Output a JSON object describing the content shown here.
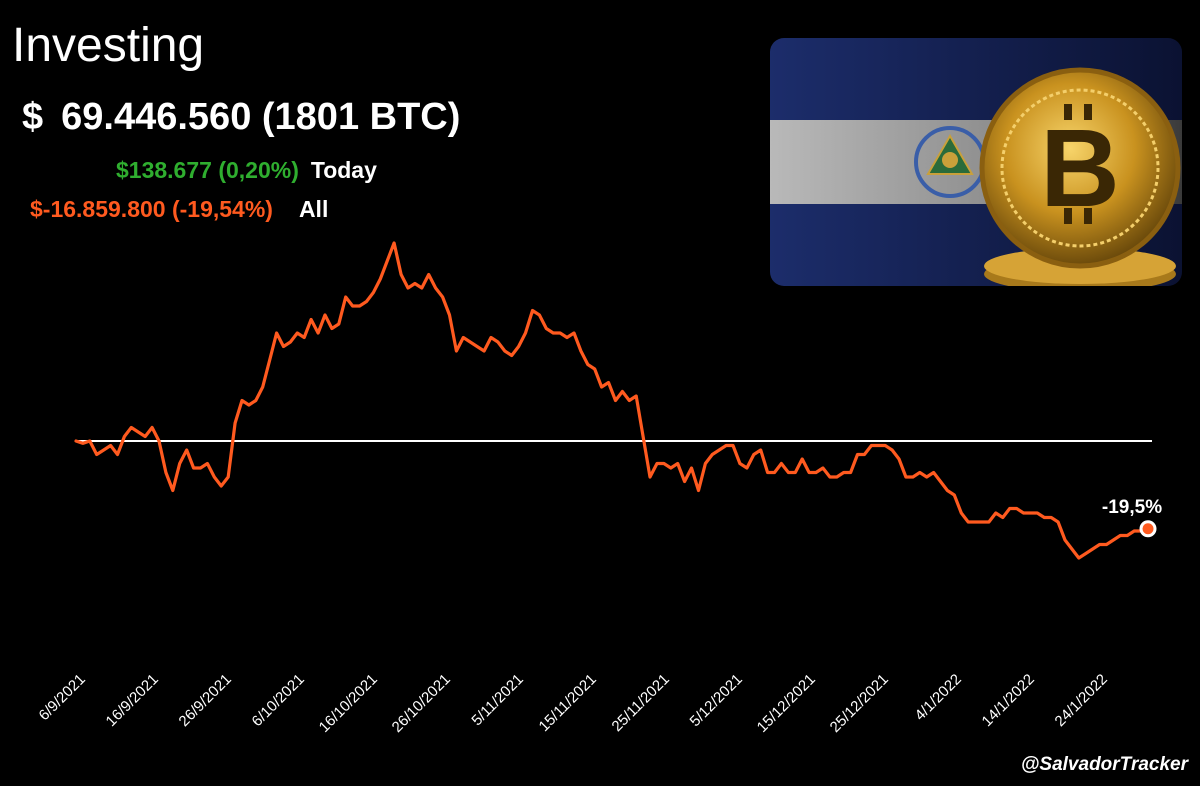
{
  "header": {
    "title": "Investing",
    "total_symbol": "$",
    "total_value": "69.446.560 (1801 BTC)",
    "today_value": "$138.677 (0,20%)",
    "today_label": "Today",
    "all_value": "$-16.859.800 (-19,54%)",
    "all_label": "All"
  },
  "footer": {
    "handle": "@SalvadorTracker"
  },
  "colors": {
    "line": "#ff5a1f",
    "today": "#2fae2f",
    "baseline": "#ffffff",
    "background": "#000000"
  },
  "image": {
    "description_icon": "el-salvador-flag-bitcoin-icon"
  },
  "chart_data": {
    "type": "line",
    "title": "",
    "xlabel": "",
    "ylabel": "",
    "baseline_value": 0,
    "ylim": [
      -34,
      54
    ],
    "x_ticks": [
      "6/9/2021",
      "16/9/2021",
      "26/9/2021",
      "6/10/2021",
      "16/10/2021",
      "26/10/2021",
      "5/11/2021",
      "15/11/2021",
      "25/11/2021",
      "5/12/2021",
      "15/12/2021",
      "25/12/2021",
      "4/1/2022",
      "14/1/2022",
      "24/1/2022"
    ],
    "end_label": "-19,5%",
    "series": [
      {
        "values": [
          0,
          -0.5,
          0,
          -3,
          -2,
          -1,
          -3,
          1,
          3,
          2,
          1,
          3,
          0,
          -7,
          -11,
          -5,
          -2,
          -6,
          -6,
          -5,
          -8,
          -10,
          -8,
          4,
          9,
          8,
          9,
          12,
          18,
          24,
          21,
          22,
          24,
          23,
          27,
          24,
          28,
          25,
          26,
          32,
          30,
          30,
          31,
          33,
          36,
          40,
          44,
          37,
          34,
          35,
          34,
          37,
          34,
          32,
          28,
          20,
          23,
          22,
          21,
          20,
          23,
          22,
          20,
          19,
          21,
          24,
          29,
          28,
          25,
          24,
          24,
          23,
          24,
          20,
          17,
          16,
          12,
          13,
          9,
          11,
          9,
          10,
          1,
          -8,
          -5,
          -5,
          -6,
          -5,
          -9,
          -6,
          -11,
          -5,
          -3,
          -2,
          -1,
          -1,
          -5,
          -6,
          -3,
          -2,
          -7,
          -7,
          -5,
          -7,
          -7,
          -4,
          -7,
          -7,
          -6,
          -8,
          -8,
          -7,
          -7,
          -3,
          -3,
          -1,
          -1,
          -1,
          -2,
          -4,
          -8,
          -8,
          -7,
          -8,
          -7,
          -9,
          -11,
          -12,
          -16,
          -18,
          -18,
          -18,
          -18,
          -16,
          -17,
          -15,
          -15,
          -16,
          -16,
          -16,
          -17,
          -17,
          -18,
          -22,
          -24,
          -26,
          -25,
          -24,
          -23,
          -23,
          -22,
          -21,
          -21,
          -20,
          -20,
          -19.5
        ]
      }
    ]
  }
}
